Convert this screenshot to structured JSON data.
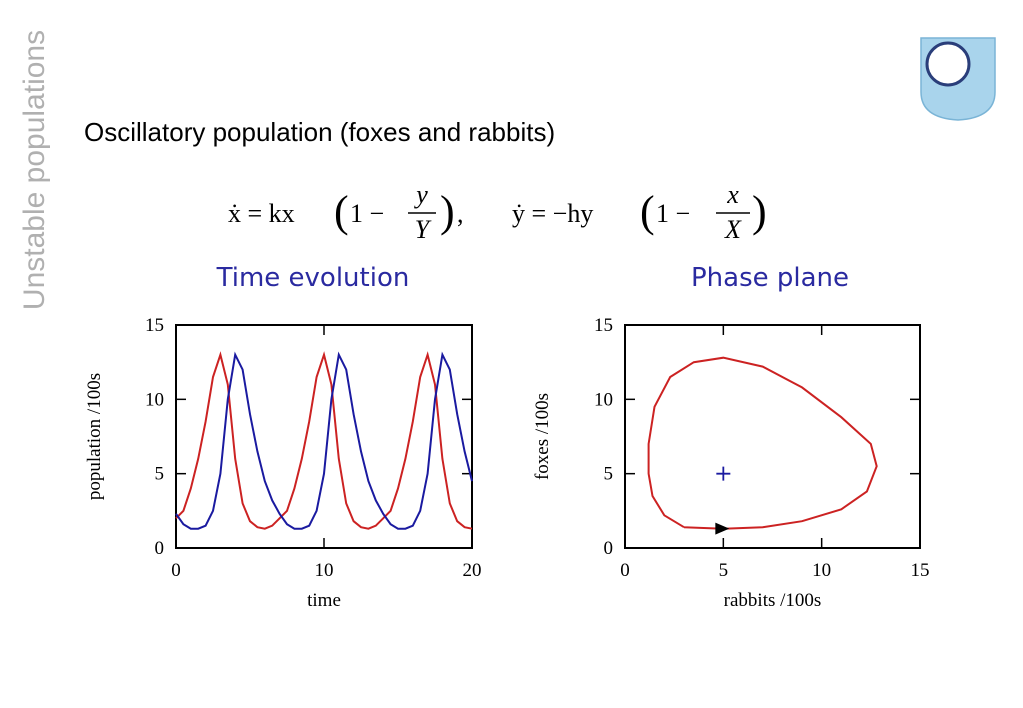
{
  "side_title": "Unstable populations",
  "heading": "Oscillatory population (foxes and rabbits)",
  "equation": {
    "lhs1": "ẋ = kx",
    "pre1": "1 −",
    "num1": "y",
    "den1": "Y",
    "sep": ",",
    "lhs2": "ẏ = −hy",
    "pre2": "1 −",
    "num2": "x",
    "den2": "X"
  },
  "chart_data": [
    {
      "type": "line",
      "title": "Time evolution",
      "xlabel": "time",
      "ylabel": "population /100s",
      "xlim": [
        0,
        20
      ],
      "ylim": [
        0,
        15
      ],
      "xticks": [
        0,
        10,
        20
      ],
      "yticks": [
        0,
        5,
        10,
        15
      ],
      "x": [
        0,
        0.5,
        1,
        1.5,
        2,
        2.5,
        3,
        3.5,
        4,
        4.5,
        5,
        5.5,
        6,
        6.5,
        7,
        7.5,
        8,
        8.5,
        9,
        9.5,
        10,
        10.5,
        11,
        11.5,
        12,
        12.5,
        13,
        13.5,
        14,
        14.5,
        15,
        15.5,
        16,
        16.5,
        17,
        17.5,
        18,
        18.5,
        19,
        19.5,
        20
      ],
      "series": [
        {
          "color": "#cc2222",
          "values": [
            2,
            2.5,
            4,
            6,
            8.5,
            11.5,
            13,
            11,
            6,
            3,
            1.8,
            1.4,
            1.3,
            1.5,
            2,
            2.5,
            4,
            6,
            8.5,
            11.5,
            13,
            11,
            6,
            3,
            1.8,
            1.4,
            1.3,
            1.5,
            2,
            2.5,
            4,
            6,
            8.5,
            11.5,
            13,
            11,
            6,
            3,
            1.8,
            1.4,
            1.3
          ]
        },
        {
          "color": "#1a1aa0",
          "values": [
            2.3,
            1.6,
            1.3,
            1.3,
            1.5,
            2.5,
            5,
            10,
            13,
            12,
            9,
            6.5,
            4.5,
            3.2,
            2.3,
            1.6,
            1.3,
            1.3,
            1.5,
            2.5,
            5,
            10,
            13,
            12,
            9,
            6.5,
            4.5,
            3.2,
            2.3,
            1.6,
            1.3,
            1.3,
            1.5,
            2.5,
            5,
            10,
            13,
            12,
            9,
            6.5,
            4.5
          ]
        }
      ]
    },
    {
      "type": "line",
      "title": "Phase plane",
      "xlabel": "rabbits /100s",
      "ylabel": "foxes /100s",
      "xlim": [
        0,
        15
      ],
      "ylim": [
        0,
        15
      ],
      "xticks": [
        0,
        5,
        10,
        15
      ],
      "yticks": [
        0,
        5,
        10,
        15
      ],
      "x": [
        3,
        5,
        7,
        9,
        11,
        12.3,
        12.8,
        12.5,
        11,
        9,
        7,
        5,
        3.5,
        2.3,
        1.5,
        1.2,
        1.2,
        1.4,
        2,
        3
      ],
      "series": [
        {
          "color": "#cc2222",
          "values": [
            1.4,
            1.3,
            1.4,
            1.8,
            2.6,
            3.8,
            5.5,
            7,
            8.8,
            10.8,
            12.2,
            12.8,
            12.5,
            11.5,
            9.5,
            7,
            5,
            3.5,
            2.2,
            1.4
          ]
        }
      ],
      "markers": [
        {
          "x": 5,
          "y": 5,
          "color": "#1a1aa0"
        }
      ]
    }
  ]
}
